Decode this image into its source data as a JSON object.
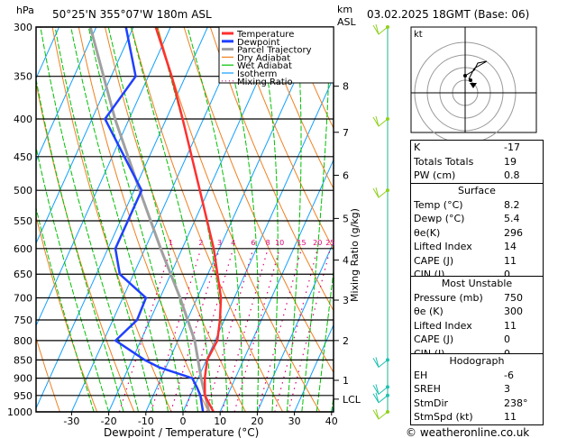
{
  "header": {
    "pressure_unit": "hPa",
    "location": "50°25'N  355°07'W  180m  ASL",
    "km_unit": "km",
    "asl_unit": "ASL",
    "datetime": "03.02.2025  18GMT  (Base: 06)"
  },
  "legend": [
    "Temperature",
    "Dewpoint",
    "Parcel Trajectory",
    "Dry Adiabat",
    "Wet Adiabat",
    "Isotherm",
    "Mixing Ratio"
  ],
  "colors": {
    "temperature": "#ff3030",
    "dewpoint": "#2040ff",
    "parcel": "#a0a0a0",
    "dry": "#f08020",
    "wet": "#00c000",
    "isotherm": "#10a0ff",
    "mixing": "#e0007a"
  },
  "hodograph": {
    "unit_label": "kt",
    "ring_labels": [
      "10",
      "20",
      "30",
      "40"
    ]
  },
  "indices": {
    "rows": [
      [
        "K",
        "-17"
      ],
      [
        "Totals Totals",
        "19"
      ],
      [
        "PW (cm)",
        "0.8"
      ]
    ]
  },
  "surface": {
    "title": "Surface",
    "rows": [
      [
        "Temp (°C)",
        "8.2"
      ],
      [
        "Dewp (°C)",
        "5.4"
      ],
      [
        "θe(K)",
        "296"
      ],
      [
        "Lifted Index",
        "14"
      ],
      [
        "CAPE (J)",
        "11"
      ],
      [
        "CIN (J)",
        "0"
      ]
    ]
  },
  "most_unstable": {
    "title": "Most Unstable",
    "rows": [
      [
        "Pressure (mb)",
        "750"
      ],
      [
        "θe (K)",
        "300"
      ],
      [
        "Lifted Index",
        "11"
      ],
      [
        "CAPE (J)",
        "0"
      ],
      [
        "CIN (J)",
        "0"
      ]
    ]
  },
  "hodo_table": {
    "title": "Hodograph",
    "rows": [
      [
        "EH",
        "-6"
      ],
      [
        "SREH",
        "3"
      ],
      [
        "StmDir",
        "238°"
      ],
      [
        "StmSpd (kt)",
        "11"
      ]
    ]
  },
  "copyright": "© weatheronline.co.uk",
  "chart_data": {
    "type": "line",
    "title": "Skew-T log-P",
    "xlabel": "Dewpoint / Temperature (°C)",
    "ylabel": "hPa",
    "right_label": "Mixing Ratio (g/kg)",
    "x_ticks": [
      -30,
      -20,
      -10,
      0,
      10,
      20,
      30,
      40
    ],
    "xlim": [
      -40,
      40
    ],
    "ylim": [
      1000,
      300
    ],
    "pressure_levels": [
      300,
      350,
      400,
      450,
      500,
      550,
      600,
      650,
      700,
      750,
      800,
      850,
      900,
      950,
      1000
    ],
    "km_ticks": [
      {
        "label": "8",
        "p": 361
      },
      {
        "label": "7",
        "p": 417
      },
      {
        "label": "6",
        "p": 477
      },
      {
        "label": "5",
        "p": 546
      },
      {
        "label": "4",
        "p": 622
      },
      {
        "label": "3",
        "p": 705
      },
      {
        "label": "2",
        "p": 800
      },
      {
        "label": "1",
        "p": 906
      },
      {
        "label": "LCL",
        "p": 961
      }
    ],
    "mixing_ratio_labels": [
      "1",
      "2",
      "3",
      "4",
      "6",
      "8",
      "10",
      "15",
      "20",
      "25"
    ],
    "mixing_ratio_values": [
      1,
      2,
      3,
      4,
      6,
      8,
      10,
      15,
      20,
      25
    ],
    "series": [
      {
        "name": "Temperature",
        "p": [
          1000,
          950,
          900,
          850,
          800,
          750,
          700,
          600,
          500,
          400,
          350,
          300
        ],
        "t": [
          8.2,
          3.9,
          1.8,
          0.2,
          0.6,
          -1.2,
          -3.6,
          -11.5,
          -22.3,
          -35.6,
          -43.7,
          -54
        ]
      },
      {
        "name": "Dewpoint",
        "p": [
          1000,
          950,
          925,
          900,
          870,
          850,
          800,
          750,
          700,
          650,
          600,
          500,
          400,
          350,
          300
        ],
        "t": [
          5.4,
          2.7,
          0.7,
          -1.6,
          -11.8,
          -16.6,
          -26.8,
          -23.5,
          -23.8,
          -33.7,
          -38,
          -38,
          -56.5,
          -53.4,
          -62
        ]
      },
      {
        "name": "Parcel Trajectory",
        "p": [
          1000,
          900,
          800,
          700,
          600,
          500,
          400,
          300
        ],
        "t": [
          7,
          0.8,
          -5.5,
          -14.6,
          -25.8,
          -38.5,
          -53.8,
          -71.6
        ]
      }
    ],
    "winds": [
      {
        "p": 1000,
        "dir": 240,
        "spd": 10
      },
      {
        "p": 950,
        "dir": 290,
        "spd": 15
      },
      {
        "p": 925,
        "dir": 290,
        "spd": 15
      },
      {
        "p": 850,
        "dir": 290,
        "spd": 15
      },
      {
        "p": 500,
        "dir": 290,
        "spd": 10
      },
      {
        "p": 400,
        "dir": 300,
        "spd": 10
      },
      {
        "p": 300,
        "dir": 310,
        "spd": 10
      }
    ]
  }
}
